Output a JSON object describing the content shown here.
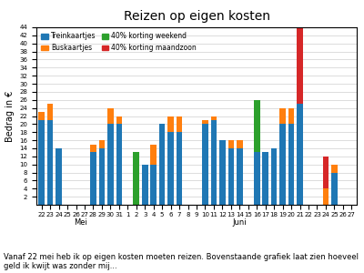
{
  "chart_data": {
    "type": "bar",
    "stacked": true,
    "title": "Reizen op eigen kosten",
    "y_label": "Bedrag in €",
    "categories": [
      "22",
      "23",
      "24",
      "25",
      "26",
      "27",
      "28",
      "29",
      "30",
      "31",
      "1",
      "2",
      "3",
      "4",
      "5",
      "6",
      "7",
      "8",
      "9",
      "10",
      "11",
      "12",
      "13",
      "14",
      "15",
      "16",
      "17",
      "18",
      "19",
      "20",
      "21",
      "22",
      "23",
      "24",
      "25",
      "26",
      "27"
    ],
    "series": [
      {
        "name": "Treinkaartjes",
        "values": [
          21,
          21,
          14,
          0,
          0,
          0,
          13,
          14,
          20,
          20,
          0,
          0,
          10,
          10,
          20,
          18,
          18,
          0,
          0,
          20,
          21,
          16,
          14,
          14,
          0,
          13,
          13,
          14,
          20,
          20,
          25,
          0,
          0,
          0,
          8,
          0,
          0
        ]
      },
      {
        "name": "Buskaartjes",
        "values": [
          2,
          4,
          0,
          0,
          0,
          0,
          2,
          2,
          4,
          2,
          0,
          0,
          0,
          5,
          0,
          4,
          4,
          0,
          0,
          1,
          1,
          0,
          2,
          2,
          0,
          0,
          0,
          0,
          4,
          4,
          0,
          0,
          0,
          4,
          2,
          0,
          0
        ]
      },
      {
        "name": "40% korting weekend",
        "values": [
          0,
          0,
          0,
          0,
          0,
          0,
          0,
          0,
          0,
          0,
          0,
          13,
          0,
          0,
          0,
          0,
          0,
          0,
          0,
          0,
          0,
          0,
          0,
          0,
          0,
          13,
          0,
          0,
          0,
          0,
          0,
          0,
          0,
          0,
          0,
          0,
          0
        ]
      },
      {
        "name": "40% korting maandzoon",
        "values": [
          0,
          0,
          0,
          0,
          0,
          0,
          0,
          0,
          0,
          0,
          0,
          0,
          0,
          0,
          0,
          0,
          0,
          0,
          0,
          0,
          0,
          0,
          0,
          0,
          0,
          0,
          0,
          0,
          0,
          0,
          19,
          0,
          0,
          8,
          0,
          0,
          0
        ]
      }
    ],
    "ylim": [
      0,
      44
    ],
    "yticks": [
      2,
      4,
      6,
      8,
      10,
      12,
      14,
      16,
      18,
      20,
      22,
      24,
      26,
      28,
      30,
      32,
      34,
      36,
      38,
      40,
      42,
      44
    ],
    "grid": true,
    "legend": "upper left",
    "annotations": [
      {
        "text": "Mei",
        "from": 0,
        "to": 9
      },
      {
        "text": "Juni",
        "from": 10,
        "to": 36
      }
    ],
    "footer": "Vanaf 22 mei heb ik op eigen kosten moeten reizen. Bovenstaande grafiek laat zien hoeveel geld ik kwijt was zonder mij..."
  }
}
